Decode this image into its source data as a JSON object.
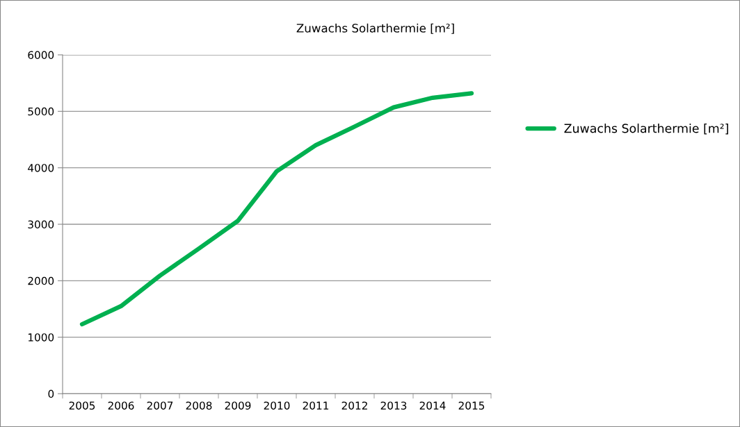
{
  "chart_data": {
    "type": "line",
    "title": "Zuwachs Solarthermie [m²]",
    "categories": [
      "2005",
      "2006",
      "2007",
      "2008",
      "2009",
      "2010",
      "2011",
      "2012",
      "2013",
      "2014",
      "2015"
    ],
    "series": [
      {
        "name": "Zuwachs Solarthermie [m²]",
        "color": "#00b050",
        "values": [
          1230,
          1550,
          2090,
          2570,
          3060,
          3940,
          4400,
          4730,
          5070,
          5240,
          5320
        ]
      }
    ],
    "ylim": [
      0,
      6000
    ],
    "yticks": [
      0,
      1000,
      2000,
      3000,
      4000,
      5000,
      6000
    ],
    "grid": "y",
    "legend": "right",
    "marker": "none",
    "line_style": "solid"
  }
}
